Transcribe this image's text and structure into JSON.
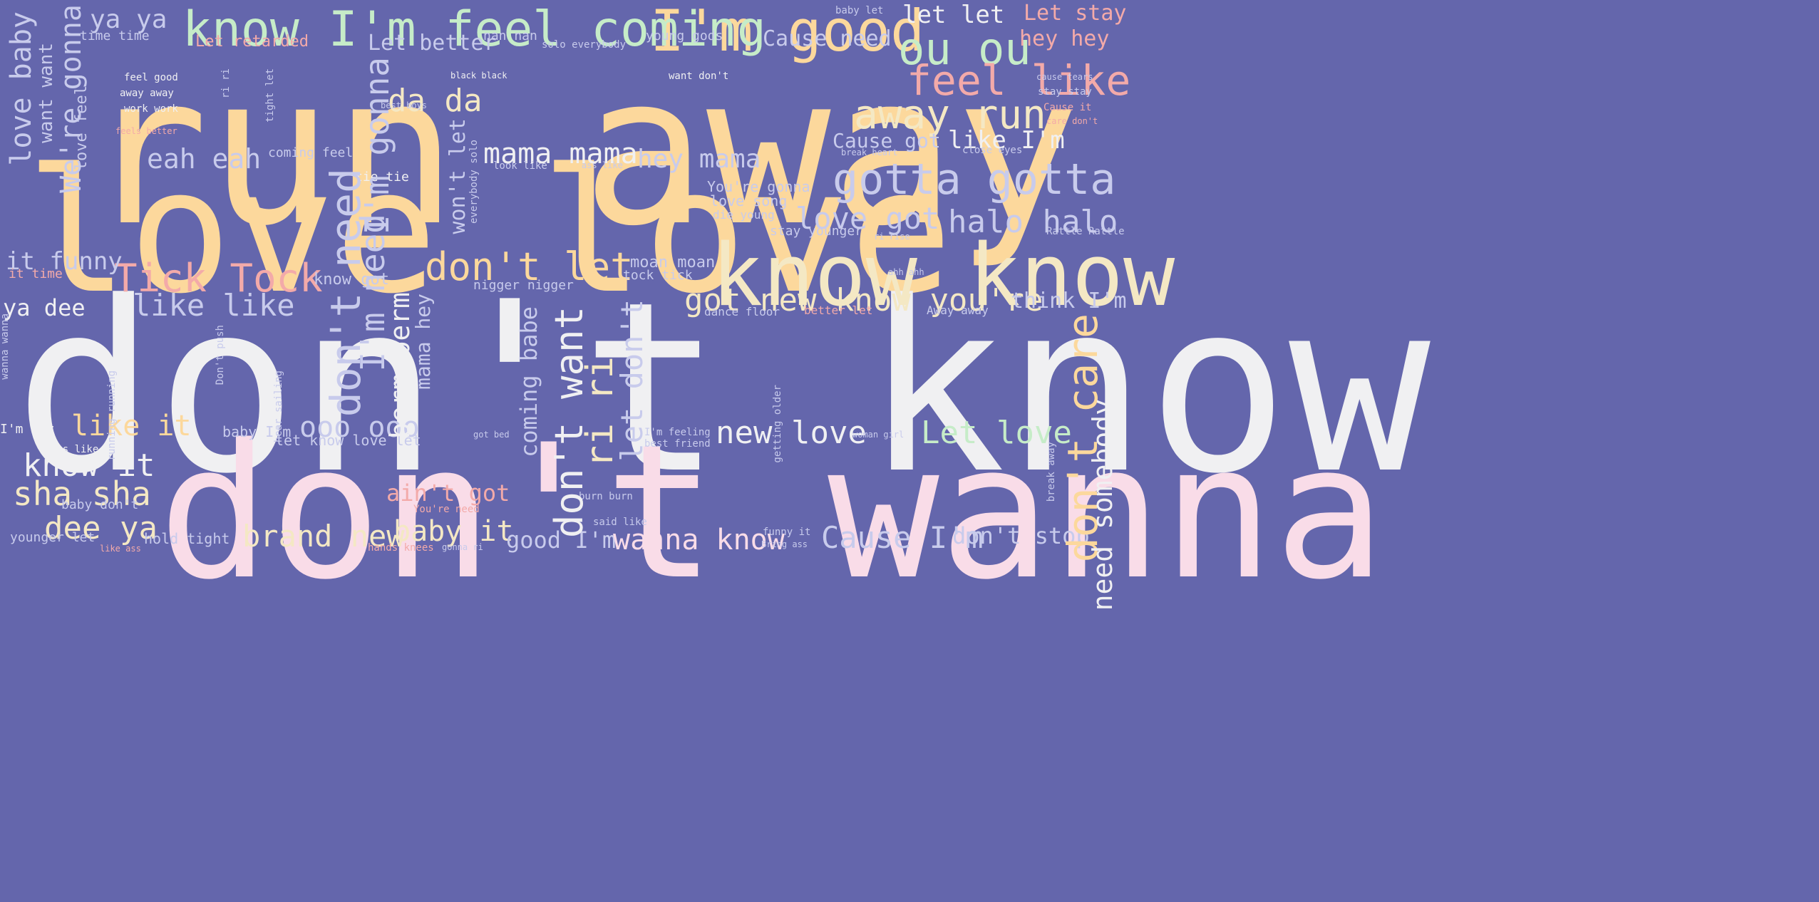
{
  "palette": {
    "background": "#6466ac",
    "peach": "#fcd89c",
    "white": "#f0f0f2",
    "pink": "#f9dce8",
    "cream": "#f4e8c4",
    "lavender": "#c8cbec",
    "mint": "#c6ecc8",
    "salmon": "#f3aaa9"
  },
  "words": [
    {
      "text": "run away",
      "color": "#fcd89c"
    },
    {
      "text": "love love",
      "color": "#fcd89c"
    },
    {
      "text": "don't know",
      "color": "#f0f0f2"
    },
    {
      "text": "don't wanna",
      "color": "#f9dce8"
    },
    {
      "text": "know know",
      "color": "#f4e8c4"
    },
    {
      "text": "I'm good",
      "color": "#fcd89c"
    },
    {
      "text": "know I'm feel coming",
      "color": "#c6ecc8"
    },
    {
      "text": "ya ya",
      "color": "#c8cbec"
    },
    {
      "text": "let let",
      "color": "#f0f0f2"
    },
    {
      "text": "Let stay",
      "color": "#f3aaa9"
    },
    {
      "text": "ou ou",
      "color": "#c6ecc8"
    },
    {
      "text": "hey hey",
      "color": "#f3aaa9"
    },
    {
      "text": "feel like",
      "color": "#f3aaa9"
    },
    {
      "text": "away run",
      "color": "#f4e8c4"
    },
    {
      "text": "Cause need",
      "color": "#c8cbec"
    },
    {
      "text": "Cause got",
      "color": "#c8cbec"
    },
    {
      "text": "like I'm",
      "color": "#f0f0f2"
    },
    {
      "text": "gotta gotta",
      "color": "#c8cbec"
    },
    {
      "text": "love got",
      "color": "#c8cbec"
    },
    {
      "text": "halo halo",
      "color": "#c8cbec"
    },
    {
      "text": "got new know you're",
      "color": "#f4e8c4"
    },
    {
      "text": "think I'm",
      "color": "#c8cbec"
    },
    {
      "text": "don't let",
      "color": "#fcd89c"
    },
    {
      "text": "Tick Tock",
      "color": "#f3aaa9"
    },
    {
      "text": "like like",
      "color": "#c8cbec"
    },
    {
      "text": "it funny",
      "color": "#c8cbec"
    },
    {
      "text": "ya dee",
      "color": "#f0f0f2"
    },
    {
      "text": "eah eah",
      "color": "#c8cbec"
    },
    {
      "text": "mama mama",
      "color": "#f0f0f2"
    },
    {
      "text": "hey mama",
      "color": "#c8cbec"
    },
    {
      "text": "da da",
      "color": "#f4e8c4"
    },
    {
      "text": "Let better",
      "color": "#c8cbec"
    },
    {
      "text": "like it",
      "color": "#fcd89c"
    },
    {
      "text": "know it",
      "color": "#f0f0f2"
    },
    {
      "text": "sha sha",
      "color": "#f4e8c4"
    },
    {
      "text": "dee ya",
      "color": "#f4e8c4"
    },
    {
      "text": "brand new",
      "color": "#f4e8c4"
    },
    {
      "text": "baby it",
      "color": "#f4e8c4"
    },
    {
      "text": "good I'm",
      "color": "#c8cbec"
    },
    {
      "text": "wanna know",
      "color": "#f9dce8"
    },
    {
      "text": "Cause I'm",
      "color": "#c8cbec"
    },
    {
      "text": "don't stop",
      "color": "#c8cbec"
    },
    {
      "text": "new love",
      "color": "#f0f0f2"
    },
    {
      "text": "Let love",
      "color": "#c6ecc8"
    },
    {
      "text": "ooo ooo",
      "color": "#c8cbec"
    },
    {
      "text": "ain't got",
      "color": "#f3aaa9"
    },
    {
      "text": "I'm gonna",
      "color": "#c8cbec"
    },
    {
      "text": "don't need",
      "color": "#c8cbec"
    },
    {
      "text": "I'm need",
      "color": "#c8cbec"
    },
    {
      "text": "don't want",
      "color": "#f0f0f2"
    },
    {
      "text": "ri ri",
      "color": "#f4e8c4"
    },
    {
      "text": "let don't",
      "color": "#c8cbec"
    },
    {
      "text": "berm berm",
      "color": "#f0f0f2"
    },
    {
      "text": "coming babe",
      "color": "#c8cbec"
    },
    {
      "text": "don't care",
      "color": "#fcd89c"
    },
    {
      "text": "need somebody",
      "color": "#f0f0f2"
    },
    {
      "text": "love baby",
      "color": "#c8cbec"
    },
    {
      "text": "want want",
      "color": "#c8cbec"
    },
    {
      "text": "We're gonna",
      "color": "#c8cbec"
    },
    {
      "text": "love feel",
      "color": "#c8cbec"
    },
    {
      "text": "won't let",
      "color": "#c8cbec"
    },
    {
      "text": "mama hey",
      "color": "#c8cbec"
    },
    {
      "text": "time time",
      "color": "#c8cbec"
    },
    {
      "text": "Let retarded",
      "color": "#f3aaa9"
    },
    {
      "text": "nan nan",
      "color": "#c8cbec"
    },
    {
      "text": "young gods",
      "color": "#c8cbec"
    },
    {
      "text": "solo everybody",
      "color": "#c8cbec"
    },
    {
      "text": "baby let",
      "color": "#c8cbec"
    },
    {
      "text": "coming feel",
      "color": "#c8cbec"
    },
    {
      "text": "tie tie",
      "color": "#f0f0f2"
    },
    {
      "text": "You're gonna",
      "color": "#c8cbec"
    },
    {
      "text": "love song",
      "color": "#c8cbec"
    },
    {
      "text": "die young",
      "color": "#c8cbec"
    },
    {
      "text": "stay younger",
      "color": "#c8cbec"
    },
    {
      "text": "know got",
      "color": "#c8cbec"
    },
    {
      "text": "moan moan",
      "color": "#c8cbec"
    },
    {
      "text": "tock tick",
      "color": "#c8cbec"
    },
    {
      "text": "nigger nigger",
      "color": "#c8cbec"
    },
    {
      "text": "dance floor",
      "color": "#c8cbec"
    },
    {
      "text": "better let",
      "color": "#f3aaa9"
    },
    {
      "text": "Away away",
      "color": "#c8cbec"
    },
    {
      "text": "it time",
      "color": "#f3aaa9"
    },
    {
      "text": "I'm way",
      "color": "#f0f0f2"
    },
    {
      "text": "feels like",
      "color": "#f0f0f2"
    },
    {
      "text": "baby don't",
      "color": "#c8cbec"
    },
    {
      "text": "younger let",
      "color": "#c8cbec"
    },
    {
      "text": "hold tight",
      "color": "#c8cbec"
    },
    {
      "text": "hands knees",
      "color": "#f3aaa9"
    },
    {
      "text": "You're need",
      "color": "#f3aaa9"
    },
    {
      "text": "burn burn",
      "color": "#c8cbec"
    },
    {
      "text": "said like",
      "color": "#c8cbec"
    },
    {
      "text": "let know love let",
      "color": "#c8cbec"
    },
    {
      "text": "baby I'm",
      "color": "#c8cbec"
    },
    {
      "text": "I'm feeling",
      "color": "#c8cbec"
    },
    {
      "text": "best friend",
      "color": "#c8cbec"
    },
    {
      "text": "woman girl",
      "color": "#c8cbec"
    },
    {
      "text": "got bed",
      "color": "#c8cbec"
    },
    {
      "text": "feel good",
      "color": "#f0f0f2"
    },
    {
      "text": "away away",
      "color": "#f0f0f2"
    },
    {
      "text": "work work",
      "color": "#f0f0f2"
    },
    {
      "text": "feels better",
      "color": "#f3aaa9"
    },
    {
      "text": "black black",
      "color": "#f0f0f2"
    },
    {
      "text": "best boys",
      "color": "#c8cbec"
    },
    {
      "text": "look like",
      "color": "#c8cbec"
    },
    {
      "text": "ass like",
      "color": "#c8cbec"
    },
    {
      "text": "want don't",
      "color": "#f0f0f2"
    },
    {
      "text": "cause tears",
      "color": "#c8cbec"
    },
    {
      "text": "stay stay",
      "color": "#c8cbec"
    },
    {
      "text": "Cause it",
      "color": "#f3aaa9"
    },
    {
      "text": "care don't",
      "color": "#f3aaa9"
    },
    {
      "text": "break heart",
      "color": "#c8cbec"
    },
    {
      "text": "close eyes",
      "color": "#c8cbec"
    },
    {
      "text": "Rattle Rattle",
      "color": "#c8cbec"
    },
    {
      "text": "ahh ahh",
      "color": "#c8cbec"
    },
    {
      "text": "ri rise",
      "color": "#c8cbec"
    },
    {
      "text": "funny it",
      "color": "#f3aaa9"
    },
    {
      "text": "Bring ass",
      "color": "#c8cbec"
    },
    {
      "text": "like ass",
      "color": "#c8cbec"
    },
    {
      "text": "gonna ri",
      "color": "#f3aaa9"
    },
    {
      "text": "tight let",
      "color": "#c8cbec"
    },
    {
      "text": "ri ri",
      "color": "#c8cbec"
    },
    {
      "text": "running running",
      "color": "#c8cbec"
    },
    {
      "text": "Don't push",
      "color": "#c8cbec"
    },
    {
      "text": "hear sailing",
      "color": "#c8cbec"
    },
    {
      "text": "getting older",
      "color": "#c8cbec"
    },
    {
      "text": "break away",
      "color": "#c8cbec"
    },
    {
      "text": "wanna wanna",
      "color": "#c8cbec"
    },
    {
      "text": "everybody solo",
      "color": "#c8cbec"
    },
    {
      "text": "gimme gimme",
      "color": "#c8cbec"
    },
    {
      "text": "want want",
      "color": "#c8cbec"
    }
  ]
}
